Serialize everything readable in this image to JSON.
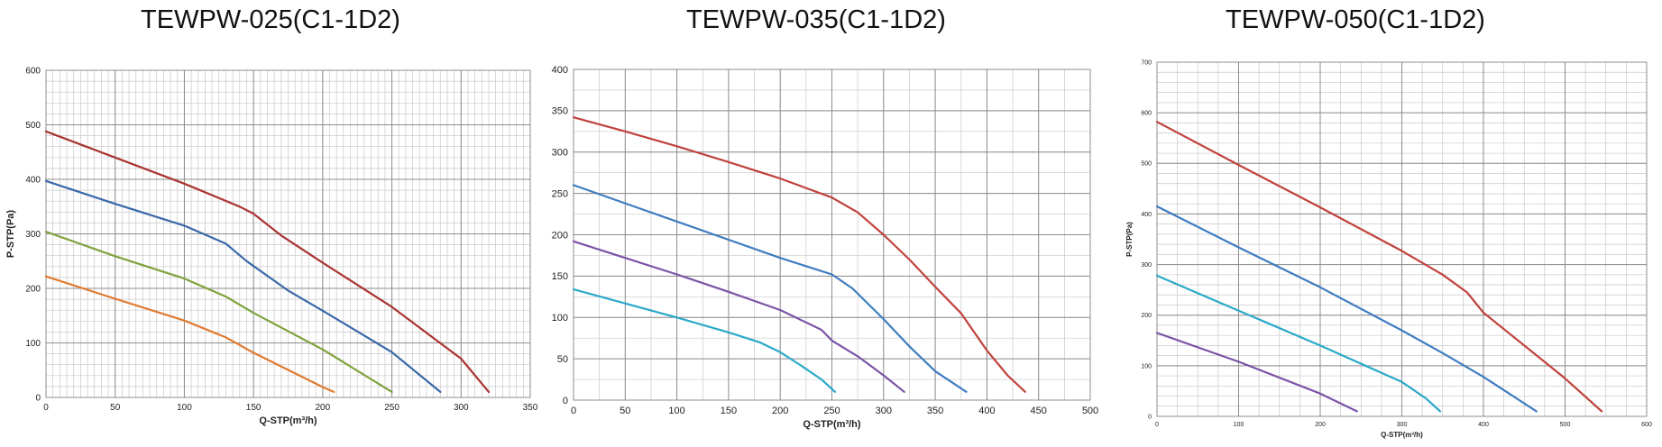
{
  "titles": [
    "TEWPW-025(C1-1D2)",
    "TEWPW-035(C1-1D2)",
    "TEWPW-050(C1-1D2)"
  ],
  "chart_data": [
    {
      "type": "line",
      "title": "TEWPW-025(C1-1D2)",
      "xlabel": "Q-STP(m³/h)",
      "ylabel": "P-STP(Pa)",
      "xlim": [
        0,
        350
      ],
      "ylim": [
        0,
        600
      ],
      "xticks": [
        0,
        50,
        100,
        150,
        200,
        250,
        300,
        350
      ],
      "xtick_labels": [
        "0",
        "50",
        "100",
        "150",
        "200",
        "250",
        "300",
        "350"
      ],
      "yticks": [
        0,
        100,
        200,
        300,
        400,
        500,
        600
      ],
      "ytick_labels": [
        "0",
        "100",
        "200",
        "300",
        "400",
        "500",
        "600"
      ],
      "grid": true,
      "series": [
        {
          "color": "#a93431",
          "x": [
            0,
            50,
            100,
            140,
            150,
            170,
            200,
            250,
            300,
            320
          ],
          "y": [
            488,
            440,
            392,
            350,
            337,
            297,
            247,
            166,
            71,
            10
          ]
        },
        {
          "color": "#3a68a8",
          "x": [
            0,
            50,
            100,
            130,
            145,
            175,
            200,
            250,
            285
          ],
          "y": [
            397,
            355,
            315,
            282,
            250,
            196,
            159,
            83,
            10
          ]
        },
        {
          "color": "#7ea23c",
          "x": [
            0,
            50,
            100,
            130,
            150,
            200,
            250
          ],
          "y": [
            304,
            259,
            218,
            185,
            155,
            88,
            10
          ]
        },
        {
          "color": "#e07a30",
          "x": [
            0,
            50,
            100,
            130,
            150,
            200,
            208
          ],
          "y": [
            222,
            181,
            141,
            110,
            82,
            19,
            10
          ]
        }
      ]
    },
    {
      "type": "line",
      "title": "TEWPW-035(C1-1D2)",
      "xlabel": "Q-STP(m³/h)",
      "ylabel": "",
      "xlim": [
        0,
        500
      ],
      "ylim": [
        0,
        400
      ],
      "xticks": [
        0,
        50,
        100,
        150,
        200,
        250,
        300,
        350,
        400,
        450,
        500
      ],
      "xtick_labels": [
        "0",
        "50",
        "100",
        "150",
        "200",
        "250",
        "300",
        "350",
        "400",
        "450",
        "500"
      ],
      "yticks": [
        0,
        50,
        100,
        150,
        200,
        250,
        300,
        350,
        400
      ],
      "ytick_labels": [
        "0",
        "50",
        "100",
        "150",
        "200",
        "250",
        "300",
        "350",
        "400"
      ],
      "grid": true,
      "series": [
        {
          "color": "#c0423c",
          "x": [
            0,
            50,
            100,
            150,
            200,
            250,
            275,
            300,
            325,
            350,
            375,
            400,
            420,
            437
          ],
          "y": [
            342,
            325,
            307,
            288,
            268,
            245,
            227,
            200,
            170,
            137,
            105,
            60,
            30,
            10
          ]
        },
        {
          "color": "#3f7cc0",
          "x": [
            0,
            50,
            100,
            150,
            200,
            250,
            270,
            300,
            325,
            350,
            380
          ],
          "y": [
            260,
            238,
            216,
            194,
            172,
            152,
            135,
            98,
            65,
            35,
            10
          ]
        },
        {
          "color": "#7b54a6",
          "x": [
            0,
            50,
            100,
            150,
            200,
            240,
            250,
            275,
            300,
            320
          ],
          "y": [
            192,
            172,
            152,
            131,
            109,
            85,
            72,
            53,
            30,
            10
          ]
        },
        {
          "color": "#2aa9c9",
          "x": [
            0,
            50,
            100,
            150,
            180,
            200,
            220,
            240,
            253
          ],
          "y": [
            134,
            117,
            100,
            82,
            70,
            58,
            42,
            25,
            10
          ]
        }
      ]
    },
    {
      "type": "line",
      "title": "TEWPW-050(C1-1D2)",
      "xlabel": "Q-STP(m³/h)",
      "ylabel": "P-STP(Pa)",
      "xlim": [
        0,
        600
      ],
      "ylim": [
        0,
        700
      ],
      "xticks": [
        0,
        100,
        200,
        300,
        400,
        500,
        600
      ],
      "xtick_labels": [
        "0",
        "100",
        "200",
        "300",
        "400",
        "500",
        "600"
      ],
      "yticks": [
        0,
        100,
        200,
        300,
        400,
        500,
        600,
        700
      ],
      "ytick_labels": [
        "0",
        "100",
        "200",
        "300",
        "400",
        "500",
        "600",
        "700"
      ],
      "grid": true,
      "series": [
        {
          "color": "#c0423c",
          "x": [
            0,
            100,
            200,
            300,
            350,
            380,
            400,
            450,
            500,
            545
          ],
          "y": [
            582,
            497,
            413,
            327,
            280,
            245,
            205,
            140,
            75,
            10
          ]
        },
        {
          "color": "#3f7cc0",
          "x": [
            0,
            100,
            200,
            300,
            350,
            400,
            465
          ],
          "y": [
            415,
            334,
            255,
            170,
            125,
            78,
            10
          ]
        },
        {
          "color": "#2aa9c9",
          "x": [
            0,
            100,
            200,
            300,
            330,
            347
          ],
          "y": [
            278,
            209,
            140,
            68,
            35,
            10
          ]
        },
        {
          "color": "#7b54a6",
          "x": [
            0,
            100,
            200,
            245
          ],
          "y": [
            165,
            108,
            45,
            10
          ]
        }
      ]
    }
  ]
}
